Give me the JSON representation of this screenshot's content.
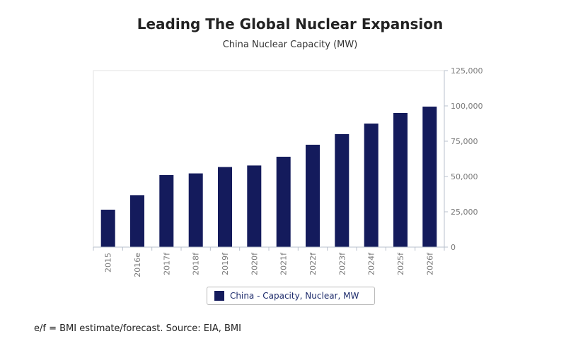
{
  "chart_data": {
    "type": "bar",
    "title": "Leading The Global Nuclear Expansion",
    "subtitle": "China Nuclear Capacity (MW)",
    "categories": [
      "2015",
      "2016e",
      "2017f",
      "2018f",
      "2019f",
      "2020f",
      "2021f",
      "2022f",
      "2023f",
      "2024f",
      "2025f",
      "2026f"
    ],
    "series": [
      {
        "name": "China - Capacity, Nuclear, MW",
        "color": "#141b5c",
        "values": [
          26500,
          36800,
          51000,
          52200,
          56700,
          57800,
          64000,
          72500,
          80000,
          87500,
          95000,
          99500
        ]
      }
    ],
    "ylim": [
      0,
      125000
    ],
    "yticks": [
      "125,000",
      "100,000",
      "75,000",
      "50,000",
      "25,000",
      "0"
    ],
    "ytick_values": [
      125000,
      100000,
      75000,
      50000,
      25000,
      0
    ],
    "y_axis_side": "right",
    "grid": false,
    "legend_position": "bottom"
  },
  "footnote": "e/f = BMI estimate/forecast. Source: EIA, BMI"
}
